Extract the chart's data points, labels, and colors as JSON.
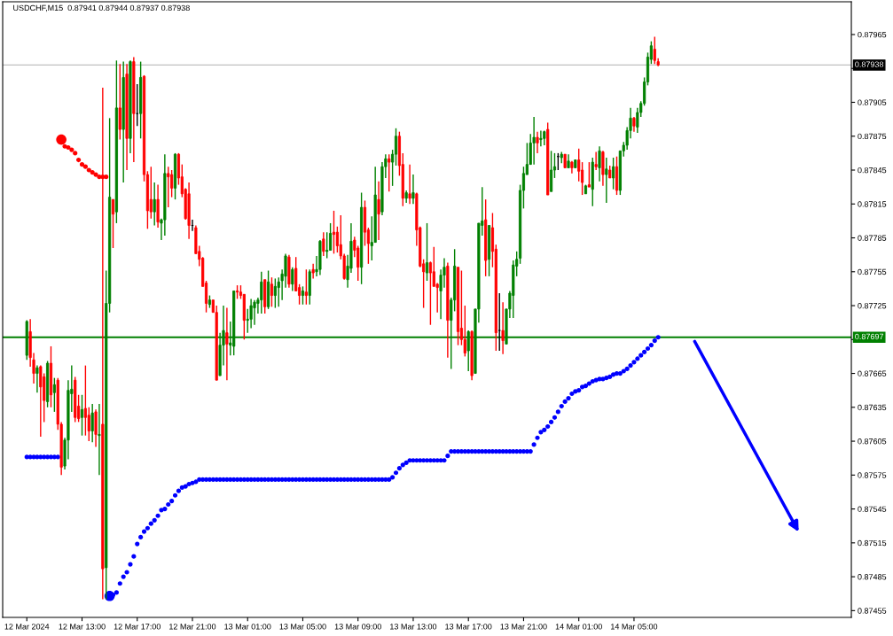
{
  "chart_data": {
    "type": "candlestick",
    "title": "USDCHF,M15  0.87941 0.87944 0.87937 0.87938",
    "colors": [
      "#008000",
      "#ff0000",
      "#ff0000",
      "#008000",
      "#ff0000",
      "#ff0000",
      "#008000",
      "#ff0000",
      "#008000",
      "#ff0000",
      "#ff0000",
      "#008000",
      "#008000",
      "#008000",
      "#ff0000",
      "#ff0000",
      "#008000",
      "#ff0000",
      "#ff0000",
      "#008000",
      "#ff0000",
      "#008000",
      "#ff0000",
      "#008000",
      "#008000",
      "#ff0000",
      "#008000",
      "#ff0000",
      "#008000",
      "#ff0000",
      "#008000",
      "#ff0000",
      "#000000",
      "#008000",
      "#ff0000",
      "#ff0000",
      "#ff0000",
      "#008000",
      "#ff0000",
      "#008000",
      "#008000",
      "#ff0000",
      "#ff0000",
      "#008000",
      "#ff0000",
      "#ff0000",
      "#ff0000",
      "#ff0000",
      "#000000",
      "#ff0000",
      "#ff0000",
      "#ff0000",
      "#ff0000",
      "#008000",
      "#ff0000",
      "#ff0000",
      "#008000",
      "#008000",
      "#ff0000",
      "#008000",
      "#008000",
      "#ff0000",
      "#ff0000",
      "#ff0000",
      "#008000",
      "#008000",
      "#008000",
      "#008000",
      "#008000",
      "#ff0000",
      "#008000",
      "#ff0000",
      "#008000",
      "#008000",
      "#008000",
      "#008000",
      "#ff0000",
      "#008000",
      "#ff0000",
      "#ff0000",
      "#008000",
      "#ff0000",
      "#008000",
      "#ff0000",
      "#008000",
      "#008000",
      "#ff0000",
      "#008000",
      "#008000",
      "#ff0000",
      "#ff0000",
      "#ff0000",
      "#ff0000",
      "#008000",
      "#008000",
      "#ff0000",
      "#ff0000",
      "#008000",
      "#ff0000",
      "#ff0000",
      "#008000",
      "#008000",
      "#ff0000",
      "#008000",
      "#008000",
      "#ff0000",
      "#008000",
      "#008000",
      "#ff0000",
      "#ff0000",
      "#008000",
      "#ff0000",
      "#008000",
      "#ff0000",
      "#ff0000",
      "#ff0000",
      "#008000",
      "#ff0000",
      "#ff0000",
      "#ff0000",
      "#008000",
      "#008000",
      "#ff0000",
      "#008000",
      "#008000",
      "#ff0000",
      "#ff0000",
      "#ff0000",
      "#008000",
      "#ff0000",
      "#008000",
      "#008000",
      "#008000",
      "#ff0000",
      "#008000",
      "#ff0000",
      "#ff0000",
      "#000000",
      "#ff0000",
      "#008000",
      "#008000",
      "#008000",
      "#008000",
      "#008000",
      "#008000",
      "#008000",
      "#008000",
      "#008000",
      "#ff0000",
      "#008000",
      "#008000",
      "#ff0000",
      "#008000",
      "#008000",
      "#000000",
      "#008000",
      "#ff0000",
      "#008000",
      "#ff0000",
      "#008000",
      "#ff0000",
      "#ff0000",
      "#008000",
      "#ff0000",
      "#008000",
      "#ff0000",
      "#008000",
      "#ff0000",
      "#008000",
      "#ff0000",
      "#008000",
      "#ff0000",
      "#008000",
      "#008000",
      "#008000",
      "#008000",
      "#ff0000",
      "#008000",
      "#008000",
      "#008000",
      "#008000",
      "#008000",
      "#ff0000",
      "#ff0000"
    ],
    "x": [
      "2024-03-12T09:00",
      "2024-03-12T09:15",
      "2024-03-12T09:30",
      "2024-03-12T09:45",
      "2024-03-12T10:00",
      "2024-03-12T10:15",
      "2024-03-12T10:30",
      "2024-03-12T10:45",
      "2024-03-12T11:00",
      "2024-03-12T11:15",
      "2024-03-12T11:30",
      "2024-03-12T11:45",
      "2024-03-12T12:00",
      "2024-03-12T12:15",
      "2024-03-12T12:30",
      "2024-03-12T12:45",
      "2024-03-12T13:00",
      "2024-03-12T13:15",
      "2024-03-12T13:30",
      "2024-03-12T13:45",
      "2024-03-12T14:00",
      "2024-03-12T14:15",
      "2024-03-12T14:30",
      "2024-03-12T14:45",
      "2024-03-12T15:00",
      "2024-03-12T15:15",
      "2024-03-12T15:30",
      "2024-03-12T15:45",
      "2024-03-12T16:00",
      "2024-03-12T16:15",
      "2024-03-12T16:30",
      "2024-03-12T16:45",
      "2024-03-12T17:00",
      "2024-03-12T17:15",
      "2024-03-12T17:30",
      "2024-03-12T17:45",
      "2024-03-12T18:00",
      "2024-03-12T18:15",
      "2024-03-12T18:30",
      "2024-03-12T18:45",
      "2024-03-12T19:00",
      "2024-03-12T19:15",
      "2024-03-12T19:30",
      "2024-03-12T19:45",
      "2024-03-12T20:00",
      "2024-03-12T20:15",
      "2024-03-12T20:30",
      "2024-03-12T20:45",
      "2024-03-12T21:00",
      "2024-03-12T21:15",
      "2024-03-12T21:30",
      "2024-03-12T21:45",
      "2024-03-12T22:00",
      "2024-03-12T22:15",
      "2024-03-12T22:30",
      "2024-03-12T22:45",
      "2024-03-12T23:00",
      "2024-03-12T23:15",
      "2024-03-12T23:30",
      "2024-03-12T23:45",
      "2024-03-13T00:00",
      "2024-03-13T00:15",
      "2024-03-13T00:30",
      "2024-03-13T00:45",
      "2024-03-13T01:00",
      "2024-03-13T01:15",
      "2024-03-13T01:30",
      "2024-03-13T01:45",
      "2024-03-13T02:00",
      "2024-03-13T02:15",
      "2024-03-13T02:30",
      "2024-03-13T02:45",
      "2024-03-13T03:00",
      "2024-03-13T03:15",
      "2024-03-13T03:30",
      "2024-03-13T03:45",
      "2024-03-13T04:00",
      "2024-03-13T04:15",
      "2024-03-13T04:30",
      "2024-03-13T04:45",
      "2024-03-13T05:00",
      "2024-03-13T05:15",
      "2024-03-13T05:30",
      "2024-03-13T05:45",
      "2024-03-13T06:00",
      "2024-03-13T06:15",
      "2024-03-13T06:30",
      "2024-03-13T06:45",
      "2024-03-13T07:00",
      "2024-03-13T07:15",
      "2024-03-13T07:30",
      "2024-03-13T07:45",
      "2024-03-13T08:00",
      "2024-03-13T08:15",
      "2024-03-13T08:30",
      "2024-03-13T08:45",
      "2024-03-13T09:00",
      "2024-03-13T09:15",
      "2024-03-13T09:30",
      "2024-03-13T09:45",
      "2024-03-13T10:00",
      "2024-03-13T10:15",
      "2024-03-13T10:30",
      "2024-03-13T10:45",
      "2024-03-13T11:00",
      "2024-03-13T11:15",
      "2024-03-13T11:30",
      "2024-03-13T11:45",
      "2024-03-13T12:00",
      "2024-03-13T12:15",
      "2024-03-13T12:30",
      "2024-03-13T12:45",
      "2024-03-13T13:00",
      "2024-03-13T13:15",
      "2024-03-13T13:30",
      "2024-03-13T13:45",
      "2024-03-13T14:00",
      "2024-03-13T14:15",
      "2024-03-13T14:30",
      "2024-03-13T14:45",
      "2024-03-13T15:00",
      "2024-03-13T15:15",
      "2024-03-13T15:30",
      "2024-03-13T15:45",
      "2024-03-13T16:00",
      "2024-03-13T16:15",
      "2024-03-13T16:30",
      "2024-03-13T16:45",
      "2024-03-13T17:00",
      "2024-03-13T17:15",
      "2024-03-13T17:30",
      "2024-03-13T17:45",
      "2024-03-13T18:00",
      "2024-03-13T18:15",
      "2024-03-13T18:30",
      "2024-03-13T18:45",
      "2024-03-13T19:00",
      "2024-03-13T19:15",
      "2024-03-13T19:30",
      "2024-03-13T19:45",
      "2024-03-13T20:00",
      "2024-03-13T20:15",
      "2024-03-13T20:30",
      "2024-03-13T20:45",
      "2024-03-13T21:00",
      "2024-03-13T21:15",
      "2024-03-13T21:30",
      "2024-03-13T21:45",
      "2024-03-13T22:00",
      "2024-03-13T22:15",
      "2024-03-13T22:30",
      "2024-03-13T22:45",
      "2024-03-13T23:00",
      "2024-03-13T23:15",
      "2024-03-13T23:30",
      "2024-03-13T23:45",
      "2024-03-14T00:00",
      "2024-03-14T00:15",
      "2024-03-14T00:30",
      "2024-03-14T00:45",
      "2024-03-14T01:00",
      "2024-03-14T01:15",
      "2024-03-14T01:30",
      "2024-03-14T01:45",
      "2024-03-14T02:00",
      "2024-03-14T02:15",
      "2024-03-14T02:30",
      "2024-03-14T02:45",
      "2024-03-14T03:00",
      "2024-03-14T03:15",
      "2024-03-14T03:30",
      "2024-03-14T03:45",
      "2024-03-14T04:00",
      "2024-03-14T04:15",
      "2024-03-14T04:30",
      "2024-03-14T04:45",
      "2024-03-14T05:00",
      "2024-03-14T05:15",
      "2024-03-14T05:30",
      "2024-03-14T05:45",
      "2024-03-14T06:00",
      "2024-03-14T06:15",
      "2024-03-14T06:30",
      "2024-03-14T06:45"
    ],
    "ohlc": [
      [
        0.87681,
        0.87712,
        0.87677,
        0.87711
      ],
      [
        0.87702,
        0.87713,
        0.87671,
        0.87679
      ],
      [
        0.87677,
        0.87683,
        0.87656,
        0.87665
      ],
      [
        0.87665,
        0.87672,
        0.87648,
        0.8767
      ],
      [
        0.87671,
        0.87672,
        0.87609,
        0.87653
      ],
      [
        0.87662,
        0.87665,
        0.87622,
        0.87641
      ],
      [
        0.8764,
        0.87676,
        0.87635,
        0.87674
      ],
      [
        0.87674,
        0.87689,
        0.87635,
        0.87646
      ],
      [
        0.87648,
        0.87661,
        0.87631,
        0.87655
      ],
      [
        0.87659,
        0.87661,
        0.87615,
        0.8762
      ],
      [
        0.8762,
        0.87622,
        0.87575,
        0.87582
      ],
      [
        0.87583,
        0.87608,
        0.8758,
        0.87606
      ],
      [
        0.87606,
        0.87659,
        0.87589,
        0.8765
      ],
      [
        0.87647,
        0.87672,
        0.87631,
        0.87651
      ],
      [
        0.87659,
        0.87662,
        0.87622,
        0.87626
      ],
      [
        0.87636,
        0.87646,
        0.87622,
        0.87625
      ],
      [
        0.87626,
        0.87646,
        0.8761,
        0.87633
      ],
      [
        0.87634,
        0.87672,
        0.8761,
        0.87626
      ],
      [
        0.87628,
        0.87635,
        0.87605,
        0.87614
      ],
      [
        0.87614,
        0.87638,
        0.87604,
        0.8763
      ],
      [
        0.87631,
        0.87633,
        0.876,
        0.87611
      ],
      [
        0.8761,
        0.87638,
        0.87575,
        0.87611
      ],
      [
        0.8762,
        0.87918,
        0.87465,
        0.87492
      ],
      [
        0.87493,
        0.87756,
        0.87465,
        0.87727
      ],
      [
        0.87727,
        0.87891,
        0.87719,
        0.87821
      ],
      [
        0.87819,
        0.87819,
        0.87776,
        0.87806
      ],
      [
        0.87808,
        0.87942,
        0.87798,
        0.879
      ],
      [
        0.879,
        0.87939,
        0.87872,
        0.87881
      ],
      [
        0.87881,
        0.87941,
        0.87834,
        0.87927
      ],
      [
        0.8793,
        0.87939,
        0.87845,
        0.87873
      ],
      [
        0.87873,
        0.87942,
        0.8786,
        0.87941
      ],
      [
        0.87941,
        0.87945,
        0.87852,
        0.87895
      ],
      [
        0.87895,
        0.87921,
        0.87884,
        0.87895
      ],
      [
        0.87895,
        0.87941,
        0.87873,
        0.87927
      ],
      [
        0.87928,
        0.87929,
        0.87835,
        0.87841
      ],
      [
        0.87841,
        0.87844,
        0.87793,
        0.87809
      ],
      [
        0.87819,
        0.87848,
        0.87802,
        0.87808
      ],
      [
        0.87808,
        0.87834,
        0.87796,
        0.87819
      ],
      [
        0.87819,
        0.87832,
        0.87794,
        0.87799
      ],
      [
        0.87798,
        0.87802,
        0.87783,
        0.87801
      ],
      [
        0.87801,
        0.87859,
        0.87787,
        0.87842
      ],
      [
        0.87842,
        0.87848,
        0.87812,
        0.87839
      ],
      [
        0.87841,
        0.87845,
        0.87821,
        0.87829
      ],
      [
        0.87829,
        0.8786,
        0.87819,
        0.87859
      ],
      [
        0.87859,
        0.8786,
        0.87832,
        0.87838
      ],
      [
        0.87839,
        0.8785,
        0.87821,
        0.87824
      ],
      [
        0.87828,
        0.87829,
        0.87801,
        0.87802
      ],
      [
        0.87824,
        0.87834,
        0.87784,
        0.87796
      ],
      [
        0.87796,
        0.87801,
        0.87791,
        0.87796
      ],
      [
        0.87794,
        0.87796,
        0.87771,
        0.87771
      ],
      [
        0.87773,
        0.87778,
        0.8776,
        0.87766
      ],
      [
        0.87767,
        0.87768,
        0.87742,
        0.87742
      ],
      [
        0.87745,
        0.87747,
        0.87719,
        0.87727
      ],
      [
        0.87726,
        0.87734,
        0.87723,
        0.8773
      ],
      [
        0.8773,
        0.8773,
        0.87719,
        0.87719
      ],
      [
        0.87719,
        0.87725,
        0.87659,
        0.87659
      ],
      [
        0.87663,
        0.87701,
        0.87663,
        0.8769
      ],
      [
        0.8769,
        0.87725,
        0.87672,
        0.87703
      ],
      [
        0.87701,
        0.87723,
        0.87659,
        0.87691
      ],
      [
        0.8769,
        0.87711,
        0.87681,
        0.87692
      ],
      [
        0.87689,
        0.87738,
        0.87681,
        0.87738
      ],
      [
        0.87738,
        0.87743,
        0.87731,
        0.87737
      ],
      [
        0.87737,
        0.87743,
        0.87731,
        0.87734
      ],
      [
        0.87735,
        0.87735,
        0.87695,
        0.87712
      ],
      [
        0.87712,
        0.87722,
        0.87701,
        0.87713
      ],
      [
        0.87713,
        0.87731,
        0.87705,
        0.87725
      ],
      [
        0.87723,
        0.8773,
        0.87708,
        0.87728
      ],
      [
        0.87727,
        0.87732,
        0.87718,
        0.8773
      ],
      [
        0.8773,
        0.87755,
        0.87718,
        0.87746
      ],
      [
        0.87748,
        0.87748,
        0.87718,
        0.87724
      ],
      [
        0.87724,
        0.87756,
        0.87722,
        0.87746
      ],
      [
        0.87744,
        0.8775,
        0.87724,
        0.87734
      ],
      [
        0.87734,
        0.87749,
        0.87723,
        0.87742
      ],
      [
        0.87741,
        0.8775,
        0.87724,
        0.87746
      ],
      [
        0.87747,
        0.87757,
        0.8773,
        0.87753
      ],
      [
        0.87751,
        0.87771,
        0.87741,
        0.87769
      ],
      [
        0.87768,
        0.8777,
        0.87741,
        0.87744
      ],
      [
        0.87744,
        0.87759,
        0.87738,
        0.87757
      ],
      [
        0.87758,
        0.87768,
        0.87738,
        0.87738
      ],
      [
        0.87741,
        0.87744,
        0.87726,
        0.87734
      ],
      [
        0.87734,
        0.87742,
        0.87726,
        0.87738
      ],
      [
        0.87737,
        0.87757,
        0.87726,
        0.87734
      ],
      [
        0.87734,
        0.87757,
        0.87726,
        0.87755
      ],
      [
        0.87757,
        0.87762,
        0.87749,
        0.87754
      ],
      [
        0.87755,
        0.87769,
        0.87751,
        0.87757
      ],
      [
        0.87757,
        0.87783,
        0.87752,
        0.87782
      ],
      [
        0.87784,
        0.8779,
        0.87769,
        0.87773
      ],
      [
        0.87773,
        0.8779,
        0.87767,
        0.87774
      ],
      [
        0.87774,
        0.87798,
        0.87774,
        0.87789
      ],
      [
        0.8779,
        0.87809,
        0.87771,
        0.87788
      ],
      [
        0.8779,
        0.87795,
        0.87772,
        0.87778
      ],
      [
        0.87779,
        0.87805,
        0.87766,
        0.87769
      ],
      [
        0.87769,
        0.87771,
        0.87748,
        0.87749
      ],
      [
        0.87748,
        0.8777,
        0.87741,
        0.8776
      ],
      [
        0.87758,
        0.87798,
        0.87754,
        0.87782
      ],
      [
        0.87783,
        0.87786,
        0.87768,
        0.87774
      ],
      [
        0.87776,
        0.87778,
        0.87747,
        0.87759
      ],
      [
        0.87759,
        0.87825,
        0.87744,
        0.87812
      ],
      [
        0.87812,
        0.87818,
        0.87778,
        0.8779
      ],
      [
        0.87792,
        0.87794,
        0.87762,
        0.8778
      ],
      [
        0.87778,
        0.87804,
        0.87765,
        0.87781
      ],
      [
        0.87781,
        0.87848,
        0.87781,
        0.87823
      ],
      [
        0.87819,
        0.87835,
        0.87783,
        0.87806
      ],
      [
        0.87808,
        0.87852,
        0.87805,
        0.87848
      ],
      [
        0.87848,
        0.87859,
        0.87838,
        0.87855
      ],
      [
        0.87855,
        0.87859,
        0.87826,
        0.87852
      ],
      [
        0.87852,
        0.87863,
        0.87831,
        0.87859
      ],
      [
        0.87859,
        0.87882,
        0.87849,
        0.87875
      ],
      [
        0.87875,
        0.87879,
        0.8784,
        0.87849
      ],
      [
        0.8785,
        0.8786,
        0.87813,
        0.8782
      ],
      [
        0.8782,
        0.87827,
        0.87816,
        0.87825
      ],
      [
        0.87824,
        0.8785,
        0.87815,
        0.8782
      ],
      [
        0.8782,
        0.87841,
        0.87815,
        0.87825
      ],
      [
        0.87824,
        0.87825,
        0.87778,
        0.87792
      ],
      [
        0.87794,
        0.87795,
        0.87759,
        0.8776
      ],
      [
        0.87762,
        0.87766,
        0.87723,
        0.87755
      ],
      [
        0.87754,
        0.87798,
        0.87747,
        0.87763
      ],
      [
        0.87763,
        0.87764,
        0.87708,
        0.87754
      ],
      [
        0.87755,
        0.87777,
        0.87742,
        0.87742
      ],
      [
        0.87744,
        0.87745,
        0.87719,
        0.87741
      ],
      [
        0.87738,
        0.87757,
        0.87713,
        0.87752
      ],
      [
        0.87752,
        0.87767,
        0.87741,
        0.87759
      ],
      [
        0.8776,
        0.87763,
        0.87679,
        0.87712
      ],
      [
        0.87712,
        0.87732,
        0.87669,
        0.8773
      ],
      [
        0.8773,
        0.87775,
        0.8772,
        0.8776
      ],
      [
        0.87759,
        0.87759,
        0.8769,
        0.87702
      ],
      [
        0.87705,
        0.87756,
        0.8769,
        0.87695
      ],
      [
        0.87695,
        0.87725,
        0.8768,
        0.87683
      ],
      [
        0.87685,
        0.87703,
        0.87667,
        0.87702
      ],
      [
        0.87702,
        0.87703,
        0.87659,
        0.87663
      ],
      [
        0.87665,
        0.87722,
        0.87665,
        0.87722
      ],
      [
        0.87722,
        0.87798,
        0.8771,
        0.87798
      ],
      [
        0.87796,
        0.8783,
        0.87787,
        0.878
      ],
      [
        0.87801,
        0.87819,
        0.87751,
        0.87765
      ],
      [
        0.87766,
        0.87796,
        0.87751,
        0.87796
      ],
      [
        0.87794,
        0.87807,
        0.87759,
        0.87773
      ],
      [
        0.87775,
        0.87779,
        0.87685,
        0.87701
      ],
      [
        0.87703,
        0.87736,
        0.87685,
        0.87703
      ],
      [
        0.87703,
        0.87728,
        0.87682,
        0.87694
      ],
      [
        0.87691,
        0.87722,
        0.87691,
        0.87722
      ],
      [
        0.87722,
        0.87738,
        0.87714,
        0.87736
      ],
      [
        0.87734,
        0.87765,
        0.87714,
        0.87761
      ],
      [
        0.8776,
        0.87773,
        0.87751,
        0.87766
      ],
      [
        0.87767,
        0.87832,
        0.87762,
        0.87827
      ],
      [
        0.87827,
        0.87848,
        0.87811,
        0.87842
      ],
      [
        0.87841,
        0.87869,
        0.87841,
        0.8785
      ],
      [
        0.8785,
        0.87877,
        0.8785,
        0.87869
      ],
      [
        0.87869,
        0.87892,
        0.8785,
        0.87874
      ],
      [
        0.87874,
        0.87879,
        0.8786,
        0.87869
      ],
      [
        0.87872,
        0.8788,
        0.87866,
        0.87873
      ],
      [
        0.87873,
        0.8788,
        0.87867,
        0.87879
      ],
      [
        0.87881,
        0.87887,
        0.87823,
        0.87823
      ],
      [
        0.87826,
        0.87862,
        0.87826,
        0.87845
      ],
      [
        0.87845,
        0.8786,
        0.87838,
        0.87848
      ],
      [
        0.87857,
        0.8786,
        0.87845,
        0.87857
      ],
      [
        0.87856,
        0.87861,
        0.87851,
        0.87859
      ],
      [
        0.87859,
        0.87859,
        0.87847,
        0.87847
      ],
      [
        0.87847,
        0.87859,
        0.87847,
        0.87853
      ],
      [
        0.87852,
        0.87853,
        0.87842,
        0.87847
      ],
      [
        0.87847,
        0.87854,
        0.87847,
        0.87854
      ],
      [
        0.87854,
        0.87864,
        0.87835,
        0.87844
      ],
      [
        0.87845,
        0.87852,
        0.87823,
        0.87834
      ],
      [
        0.87824,
        0.87832,
        0.87824,
        0.87831
      ],
      [
        0.87832,
        0.87852,
        0.8783,
        0.8783
      ],
      [
        0.87828,
        0.87856,
        0.87813,
        0.87852
      ],
      [
        0.8785,
        0.87861,
        0.87845,
        0.87848
      ],
      [
        0.87847,
        0.87866,
        0.87835,
        0.87862
      ],
      [
        0.87861,
        0.87862,
        0.87831,
        0.87841
      ],
      [
        0.87841,
        0.87856,
        0.87816,
        0.87846
      ],
      [
        0.87845,
        0.87849,
        0.87838,
        0.87838
      ],
      [
        0.87838,
        0.87856,
        0.87828,
        0.87848
      ],
      [
        0.87848,
        0.87857,
        0.87823,
        0.87827
      ],
      [
        0.87827,
        0.87862,
        0.87823,
        0.87862
      ],
      [
        0.87862,
        0.8787,
        0.87857,
        0.87867
      ],
      [
        0.87867,
        0.87883,
        0.87863,
        0.8788
      ],
      [
        0.8788,
        0.879,
        0.87873,
        0.87891
      ],
      [
        0.87891,
        0.87892,
        0.87879,
        0.87884
      ],
      [
        0.87883,
        0.879,
        0.87878,
        0.87896
      ],
      [
        0.87896,
        0.87906,
        0.87892,
        0.87904
      ],
      [
        0.87904,
        0.87927,
        0.87902,
        0.87923
      ],
      [
        0.87923,
        0.87949,
        0.8792,
        0.87945
      ],
      [
        0.87943,
        0.87959,
        0.87939,
        0.87955
      ],
      [
        0.87952,
        0.87963,
        0.87939,
        0.87942
      ],
      [
        0.87941,
        0.87944,
        0.87937,
        0.87938
      ]
    ],
    "series": [
      {
        "type": "scatter",
        "color": "#0000ff",
        "marker": "circle",
        "values": [
          0.87591,
          0.87591,
          0.87591,
          0.87591,
          0.87591,
          0.87591,
          0.87591,
          0.87591,
          0.87591,
          0.87591,
          null,
          null,
          null,
          null,
          null,
          null,
          null,
          null,
          null,
          null,
          null,
          null,
          null,
          null,
          0.87468,
          0.87469,
          0.87471,
          0.87479,
          0.87485,
          0.87489,
          0.87496,
          0.87503,
          0.87514,
          0.8752,
          0.87525,
          0.87528,
          0.87532,
          0.87535,
          0.87539,
          0.87544,
          0.87545,
          0.87549,
          0.87552,
          0.87557,
          0.87561,
          0.87564,
          0.87565,
          0.87567,
          0.87568,
          0.87569,
          0.87571,
          0.87571,
          0.87571,
          0.87571,
          0.87571,
          0.87571,
          0.87571,
          0.87571,
          0.87571,
          0.87571,
          0.87571,
          0.87571,
          0.87571,
          0.87571,
          0.87571,
          0.87571,
          0.87571,
          0.87571,
          0.87571,
          0.87571,
          0.87571,
          0.87571,
          0.87571,
          0.87571,
          0.87571,
          0.87571,
          0.87571,
          0.87571,
          0.87571,
          0.87571,
          0.87571,
          0.87571,
          0.87571,
          0.87571,
          0.87571,
          0.87571,
          0.87571,
          0.87571,
          0.87571,
          0.87571,
          0.87571,
          0.87571,
          0.87571,
          0.87571,
          0.87571,
          0.87571,
          0.87571,
          0.87571,
          0.87571,
          0.87571,
          0.87571,
          0.87571,
          0.87571,
          0.87571,
          0.87571,
          0.87571,
          0.87573,
          0.87577,
          0.87581,
          0.87584,
          0.87586,
          0.87588,
          0.87588,
          0.87588,
          0.87588,
          0.87588,
          0.87588,
          0.87588,
          0.87588,
          0.87588,
          0.87588,
          0.87588,
          0.87592,
          0.87596,
          0.87596,
          0.87596,
          0.87596,
          0.87596,
          0.87596,
          0.87596,
          0.87596,
          0.87596,
          0.87596,
          0.87596,
          0.87596,
          0.87596,
          0.87596,
          0.87596,
          0.87596,
          0.87596,
          0.87596,
          0.87596,
          0.87596,
          0.87596,
          0.87596,
          0.87596,
          0.87596,
          0.87602,
          0.87608,
          0.87613,
          0.87615,
          0.87618,
          0.87622,
          0.87626,
          0.87631,
          0.87636,
          0.8764,
          0.87643,
          0.87647,
          0.87649,
          0.8765,
          0.87653,
          0.87654,
          0.87656,
          0.87658,
          0.87659,
          0.8766,
          0.8766,
          0.87661,
          0.87662,
          0.87664,
          0.87665,
          0.87665,
          0.87667,
          0.87669,
          0.87672,
          0.87675,
          0.87678,
          0.87681,
          0.87684,
          0.87687,
          0.8769,
          0.87694,
          0.87697
        ]
      },
      {
        "type": "scatter",
        "color": "#ff0000",
        "marker": "circle",
        "values": [
          null,
          null,
          null,
          null,
          null,
          null,
          null,
          null,
          null,
          null,
          0.87872,
          0.87866,
          0.87865,
          0.87863,
          0.8786,
          0.87854,
          0.8785,
          0.87848,
          0.87845,
          0.87843,
          0.87841,
          0.87839,
          0.87839,
          0.87839,
          null,
          null,
          null,
          null,
          null,
          null,
          null,
          null,
          null,
          null,
          null,
          null,
          null,
          null,
          null,
          null,
          null,
          null,
          null,
          null,
          null,
          null,
          null,
          null,
          null,
          null,
          null,
          null,
          null,
          null,
          null,
          null,
          null,
          null,
          null,
          null,
          null,
          null,
          null,
          null,
          null,
          null,
          null,
          null,
          null,
          null,
          null,
          null,
          null,
          null,
          null,
          null,
          null,
          null,
          null,
          null,
          null,
          null,
          null,
          null,
          null,
          null,
          null,
          null,
          null,
          null,
          null,
          null,
          null,
          null,
          null,
          null,
          null,
          null,
          null,
          null,
          null,
          null,
          null,
          null,
          null,
          null,
          null,
          null,
          null,
          null,
          null,
          null,
          null,
          null,
          null,
          null,
          null,
          null,
          null,
          null,
          null,
          null,
          null,
          null,
          null,
          null,
          null,
          null,
          null,
          null,
          null,
          null,
          null,
          null,
          null,
          null,
          null,
          null,
          null,
          null,
          null,
          null,
          null,
          null,
          null,
          null,
          null,
          null,
          null,
          null,
          null,
          null,
          null,
          null,
          null,
          null,
          null,
          null,
          null,
          null,
          null,
          null,
          null,
          null,
          null,
          null,
          null,
          null,
          null,
          null,
          null,
          null,
          null,
          null,
          null,
          null,
          null,
          null,
          null,
          null,
          null,
          null,
          null,
          null
        ]
      }
    ],
    "ref_lines": [
      {
        "axis": "y",
        "value": 0.87938,
        "label": "0.87938",
        "color": "#c0c0c0"
      },
      {
        "axis": "y",
        "value": 0.87697,
        "label": "0.87697",
        "color": "#008000"
      }
    ],
    "xlim": [
      "2024-03-12T07:15",
      "2024-03-14T20:45"
    ],
    "xticks": [
      {
        "value": "2024-03-12T09:00",
        "label": "12 Mar 2024"
      },
      {
        "value": "2024-03-12T13:00",
        "label": "12 Mar 13:00"
      },
      {
        "value": "2024-03-12T17:00",
        "label": "12 Mar 17:00"
      },
      {
        "value": "2024-03-12T21:00",
        "label": "12 Mar 21:00"
      },
      {
        "value": "2024-03-13T01:00",
        "label": "13 Mar 01:00"
      },
      {
        "value": "2024-03-13T05:00",
        "label": "13 Mar 05:00"
      },
      {
        "value": "2024-03-13T09:00",
        "label": "13 Mar 09:00"
      },
      {
        "value": "2024-03-13T13:00",
        "label": "13 Mar 13:00"
      },
      {
        "value": "2024-03-13T17:00",
        "label": "13 Mar 17:00"
      },
      {
        "value": "2024-03-13T21:00",
        "label": "13 Mar 21:00"
      },
      {
        "value": "2024-03-14T01:00",
        "label": "14 Mar 01:00"
      },
      {
        "value": "2024-03-14T05:00",
        "label": "14 Mar 05:00"
      }
    ],
    "ylim": [
      0.87449,
      0.87994
    ],
    "yticks": [
      0.87455,
      0.87485,
      0.87515,
      0.87545,
      0.87575,
      0.87605,
      0.87635,
      0.87665,
      {
        "value": 0.87695,
        "label": null
      },
      0.87725,
      0.87755,
      0.87785,
      0.87815,
      0.87845,
      0.87875,
      0.87905,
      {
        "value": 0.87935,
        "label": null
      },
      0.87965
    ]
  }
}
